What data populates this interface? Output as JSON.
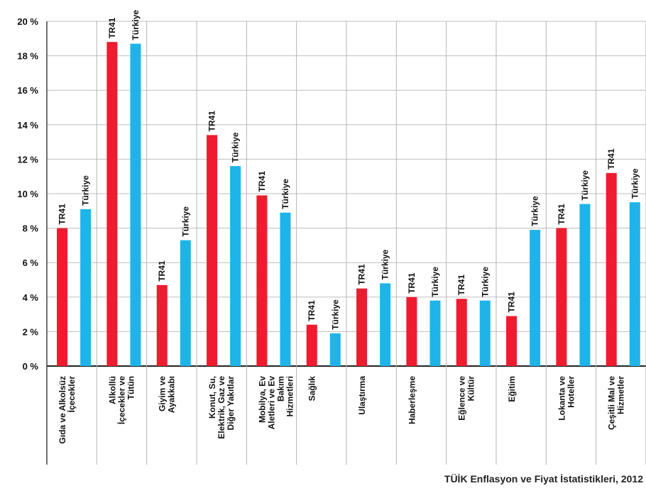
{
  "chart_data": {
    "type": "bar",
    "ylim": [
      0,
      20
    ],
    "yticks": [
      0,
      2,
      4,
      6,
      8,
      10,
      12,
      14,
      16,
      18,
      20
    ],
    "ytick_suffix": " %",
    "grid": true,
    "colors": {
      "TR41": "#ee1c2e",
      "Türkiye": "#1eb4ea"
    },
    "categories": [
      [
        "Gıda ve Alkolsüz",
        "İçecekler"
      ],
      [
        "Alkollü",
        "İçecekler ve",
        "Tütün"
      ],
      [
        "Giyim ve",
        "Ayakkabı"
      ],
      [
        "Konut, Su,",
        "Elektrik, Gaz ve",
        "Diğer Yakıtlar"
      ],
      [
        "Mobilya, Ev",
        "Aletleri ve Ev",
        "Bakım",
        "Hizmetleri"
      ],
      [
        "Sağlık"
      ],
      [
        "Ulaştırma"
      ],
      [
        "Haberleşme"
      ],
      [
        "Eğlence ve",
        "Kültür"
      ],
      [
        "Eğitim"
      ],
      [
        "Lokanta ve",
        "Hoteller"
      ],
      [
        "Çeşitli Mal ve",
        "Hizmetler"
      ]
    ],
    "series": [
      {
        "name": "TR41",
        "values": [
          8.0,
          18.8,
          4.7,
          13.4,
          9.9,
          2.4,
          4.5,
          4.0,
          3.9,
          2.9,
          8.0,
          11.2
        ]
      },
      {
        "name": "Türkiye",
        "values": [
          9.1,
          18.7,
          7.3,
          11.6,
          8.9,
          1.9,
          4.8,
          3.8,
          3.8,
          7.9,
          9.4,
          9.5
        ]
      }
    ]
  },
  "source_note": "TÜİK Enflasyon ve Fiyat İstatistikleri, 2012"
}
